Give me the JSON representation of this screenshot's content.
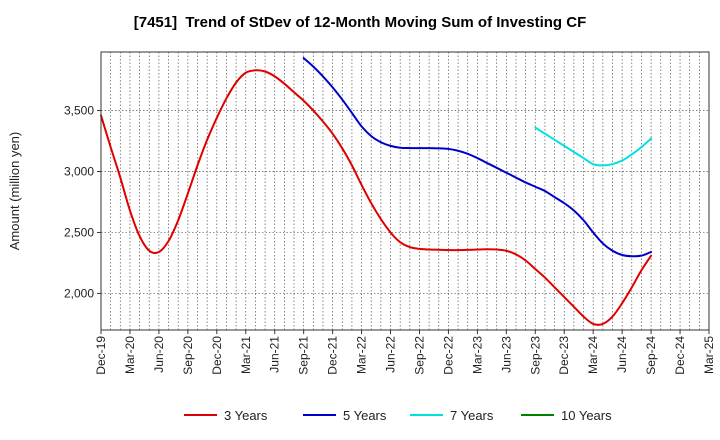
{
  "chart_data": {
    "type": "line",
    "title": "[7451]  Trend of StDev of 12-Month Moving Sum of Investing CF",
    "xlabel": "",
    "ylabel": "Amount (million yen)",
    "ylim": [
      1700,
      3980
    ],
    "yticks": [
      2000,
      2500,
      3000,
      3500
    ],
    "ytick_labels": [
      "2,000",
      "2,500",
      "3,000",
      "3,500"
    ],
    "xlim": [
      "Dec-19",
      "Mar-25"
    ],
    "xticks": [
      "Dec-19",
      "Mar-20",
      "Jun-20",
      "Sep-20",
      "Dec-20",
      "Mar-21",
      "Jun-21",
      "Sep-21",
      "Dec-21",
      "Mar-22",
      "Jun-22",
      "Sep-22",
      "Dec-22",
      "Mar-23",
      "Jun-23",
      "Sep-23",
      "Dec-23",
      "Mar-24",
      "Jun-24",
      "Sep-24",
      "Dec-24",
      "Mar-25"
    ],
    "grid": true,
    "legend_position": "bottom",
    "series": [
      {
        "name": "3 Years",
        "color": "#e00000",
        "x": [
          "Dec-19",
          "Jan-20",
          "Feb-20",
          "Mar-20",
          "Apr-20",
          "May-20",
          "Jun-20",
          "Jul-20",
          "Aug-20",
          "Sep-20",
          "Oct-20",
          "Nov-20",
          "Dec-20",
          "Jan-21",
          "Feb-21",
          "Mar-21",
          "Apr-21",
          "May-21",
          "Jun-21",
          "Jul-21",
          "Aug-21",
          "Sep-21",
          "Oct-21",
          "Nov-21",
          "Dec-21",
          "Jan-22",
          "Feb-22",
          "Mar-22",
          "Apr-22",
          "May-22",
          "Jun-22",
          "Jul-22",
          "Aug-22",
          "Sep-22",
          "Oct-22",
          "Nov-22",
          "Dec-22",
          "Jan-23",
          "Feb-23",
          "Mar-23",
          "Apr-23",
          "May-23",
          "Jun-23",
          "Jul-23",
          "Aug-23",
          "Sep-23",
          "Oct-23",
          "Nov-23",
          "Dec-23",
          "Jan-24",
          "Feb-24",
          "Mar-24",
          "Apr-24",
          "May-24",
          "Jun-24",
          "Jul-24",
          "Aug-24",
          "Sep-24"
        ],
        "values": [
          3460,
          3200,
          2950,
          2680,
          2470,
          2350,
          2340,
          2430,
          2600,
          2820,
          3050,
          3260,
          3440,
          3600,
          3730,
          3810,
          3830,
          3820,
          3780,
          3720,
          3650,
          3580,
          3500,
          3410,
          3310,
          3190,
          3050,
          2890,
          2740,
          2610,
          2500,
          2420,
          2380,
          2365,
          2360,
          2358,
          2355,
          2355,
          2357,
          2360,
          2362,
          2360,
          2350,
          2320,
          2270,
          2200,
          2130,
          2050,
          1970,
          1890,
          1810,
          1750,
          1750,
          1810,
          1920,
          2050,
          2190,
          2310
        ]
      },
      {
        "name": "5 Years",
        "color": "#0000cc",
        "x": [
          "Sep-21",
          "Oct-21",
          "Nov-21",
          "Dec-21",
          "Jan-22",
          "Feb-22",
          "Mar-22",
          "Apr-22",
          "May-22",
          "Jun-22",
          "Jul-22",
          "Aug-22",
          "Sep-22",
          "Oct-22",
          "Nov-22",
          "Dec-22",
          "Jan-23",
          "Feb-23",
          "Mar-23",
          "Apr-23",
          "May-23",
          "Jun-23",
          "Jul-23",
          "Aug-23",
          "Sep-23",
          "Oct-23",
          "Nov-23",
          "Dec-23",
          "Jan-24",
          "Feb-24",
          "Mar-24",
          "Apr-24",
          "May-24",
          "Jun-24",
          "Jul-24",
          "Aug-24",
          "Sep-24"
        ],
        "values": [
          3930,
          3860,
          3780,
          3690,
          3590,
          3480,
          3370,
          3290,
          3240,
          3210,
          3195,
          3192,
          3192,
          3192,
          3190,
          3185,
          3170,
          3145,
          3110,
          3070,
          3030,
          2990,
          2950,
          2910,
          2875,
          2840,
          2790,
          2740,
          2680,
          2600,
          2500,
          2410,
          2350,
          2315,
          2305,
          2310,
          2340
        ]
      },
      {
        "name": "7 Years",
        "color": "#00e0e0",
        "x": [
          "Sep-23",
          "Oct-23",
          "Nov-23",
          "Dec-23",
          "Jan-24",
          "Feb-24",
          "Mar-24",
          "Apr-24",
          "May-24",
          "Jun-24",
          "Jul-24",
          "Aug-24",
          "Sep-24"
        ],
        "values": [
          3360,
          3310,
          3260,
          3210,
          3160,
          3110,
          3060,
          3050,
          3060,
          3090,
          3140,
          3200,
          3270
        ]
      },
      {
        "name": "10 Years",
        "color": "#008000",
        "x": [],
        "values": []
      }
    ]
  }
}
